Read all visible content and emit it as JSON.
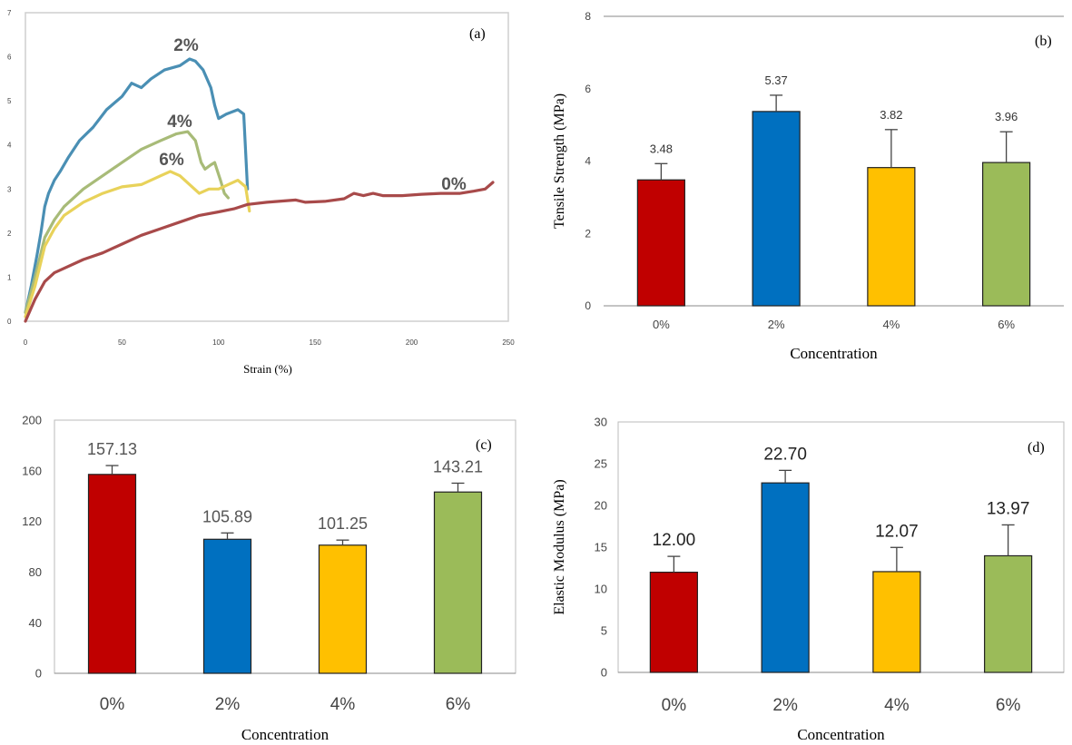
{
  "colors": {
    "red": "#C00000",
    "blue": "#0070C0",
    "yellow": "#FFC000",
    "green": "#9BBB59",
    "curve_2": "#4A8FB4",
    "curve_4": "#A8BB78",
    "curve_6": "#E8D25A",
    "curve_0": "#A84A4A"
  },
  "chart_data": [
    {
      "type": "line",
      "panel": "(a)",
      "xlabel": "Strain (%)",
      "ylabel": "",
      "xlim": [
        0,
        250
      ],
      "ylim": [
        0,
        7
      ],
      "x_ticks": [
        "0",
        "50",
        "100",
        "150",
        "200",
        "250"
      ],
      "y_ticks": [
        "0",
        "1",
        "2",
        "3",
        "4",
        "5",
        "6",
        "7"
      ],
      "series": [
        {
          "name": "2%",
          "color_key": "curve_2",
          "points": [
            [
              0,
              0.2
            ],
            [
              3,
              0.8
            ],
            [
              6,
              1.5
            ],
            [
              8,
              2.0
            ],
            [
              10,
              2.6
            ],
            [
              12,
              2.9
            ],
            [
              15,
              3.2
            ],
            [
              18,
              3.4
            ],
            [
              22,
              3.7
            ],
            [
              28,
              4.1
            ],
            [
              35,
              4.4
            ],
            [
              42,
              4.8
            ],
            [
              50,
              5.1
            ],
            [
              55,
              5.4
            ],
            [
              60,
              5.3
            ],
            [
              65,
              5.5
            ],
            [
              72,
              5.7
            ],
            [
              80,
              5.8
            ],
            [
              85,
              5.95
            ],
            [
              88,
              5.9
            ],
            [
              92,
              5.7
            ],
            [
              96,
              5.3
            ],
            [
              98,
              4.9
            ],
            [
              100,
              4.6
            ],
            [
              104,
              4.7
            ],
            [
              110,
              4.8
            ],
            [
              113,
              4.7
            ],
            [
              115,
              3.0
            ]
          ]
        },
        {
          "name": "4%",
          "color_key": "curve_4",
          "points": [
            [
              0,
              0.2
            ],
            [
              5,
              1.0
            ],
            [
              10,
              1.9
            ],
            [
              15,
              2.3
            ],
            [
              20,
              2.6
            ],
            [
              30,
              3.0
            ],
            [
              40,
              3.3
            ],
            [
              50,
              3.6
            ],
            [
              60,
              3.9
            ],
            [
              70,
              4.1
            ],
            [
              78,
              4.25
            ],
            [
              84,
              4.3
            ],
            [
              88,
              4.1
            ],
            [
              91,
              3.6
            ],
            [
              93,
              3.45
            ],
            [
              96,
              3.55
            ],
            [
              98,
              3.6
            ],
            [
              101,
              3.2
            ],
            [
              103,
              2.9
            ],
            [
              105,
              2.8
            ]
          ]
        },
        {
          "name": "6%",
          "color_key": "curve_6",
          "points": [
            [
              0,
              0.1
            ],
            [
              5,
              0.8
            ],
            [
              10,
              1.7
            ],
            [
              15,
              2.1
            ],
            [
              20,
              2.4
            ],
            [
              30,
              2.7
            ],
            [
              40,
              2.9
            ],
            [
              50,
              3.05
            ],
            [
              60,
              3.1
            ],
            [
              70,
              3.3
            ],
            [
              75,
              3.4
            ],
            [
              80,
              3.3
            ],
            [
              85,
              3.1
            ],
            [
              90,
              2.9
            ],
            [
              95,
              3.0
            ],
            [
              100,
              3.0
            ],
            [
              105,
              3.1
            ],
            [
              110,
              3.2
            ],
            [
              114,
              3.05
            ],
            [
              116,
              2.5
            ]
          ]
        },
        {
          "name": "0%",
          "color_key": "curve_0",
          "points": [
            [
              0,
              0
            ],
            [
              5,
              0.5
            ],
            [
              10,
              0.9
            ],
            [
              15,
              1.1
            ],
            [
              20,
              1.2
            ],
            [
              30,
              1.4
            ],
            [
              40,
              1.55
            ],
            [
              50,
              1.75
            ],
            [
              60,
              1.95
            ],
            [
              70,
              2.1
            ],
            [
              80,
              2.25
            ],
            [
              90,
              2.4
            ],
            [
              100,
              2.48
            ],
            [
              108,
              2.55
            ],
            [
              115,
              2.65
            ],
            [
              125,
              2.7
            ],
            [
              140,
              2.75
            ],
            [
              145,
              2.7
            ],
            [
              155,
              2.72
            ],
            [
              165,
              2.78
            ],
            [
              170,
              2.9
            ],
            [
              175,
              2.85
            ],
            [
              180,
              2.9
            ],
            [
              185,
              2.85
            ],
            [
              195,
              2.85
            ],
            [
              205,
              2.88
            ],
            [
              215,
              2.9
            ],
            [
              225,
              2.9
            ],
            [
              232,
              2.95
            ],
            [
              238,
              3.0
            ],
            [
              242,
              3.15
            ]
          ]
        }
      ],
      "curve_labels": [
        "2%",
        "4%",
        "6%",
        "0%"
      ]
    },
    {
      "type": "bar",
      "panel": "(b)",
      "categories": [
        "0%",
        "2%",
        "4%",
        "6%"
      ],
      "values": [
        3.48,
        5.37,
        3.82,
        3.96
      ],
      "value_labels": [
        "3.48",
        "5.37",
        "3.82",
        "3.96"
      ],
      "error": [
        0.45,
        0.45,
        1.05,
        0.85
      ],
      "ylabel": "Tensile Strength (MPa)",
      "xlabel": "Concentration",
      "ylim": [
        0,
        8
      ],
      "y_ticks": [
        "0",
        "2",
        "4",
        "6",
        "8"
      ]
    },
    {
      "type": "bar",
      "panel": "(c)",
      "categories": [
        "0%",
        "2%",
        "4%",
        "6%"
      ],
      "values": [
        157.13,
        105.89,
        101.25,
        143.21
      ],
      "value_labels": [
        "157.13",
        "105.89",
        "101.25",
        "143.21"
      ],
      "error": [
        7,
        5,
        4,
        7
      ],
      "ylabel": "",
      "xlabel": "Concentration",
      "ylim": [
        0,
        200
      ],
      "y_ticks": [
        "0",
        "40",
        "80",
        "120",
        "160",
        "200"
      ]
    },
    {
      "type": "bar",
      "panel": "(d)",
      "categories": [
        "0%",
        "2%",
        "4%",
        "6%"
      ],
      "values": [
        12.0,
        22.7,
        12.07,
        13.97
      ],
      "value_labels": [
        "12.00",
        "22.70",
        "12.07",
        "13.97"
      ],
      "error": [
        1.9,
        1.5,
        2.9,
        3.7
      ],
      "ylabel": "Elastic Modulus (MPa)",
      "xlabel": "Concentration",
      "ylim": [
        0,
        30
      ],
      "y_ticks": [
        "0",
        "5",
        "10",
        "15",
        "20",
        "25",
        "30"
      ]
    }
  ]
}
